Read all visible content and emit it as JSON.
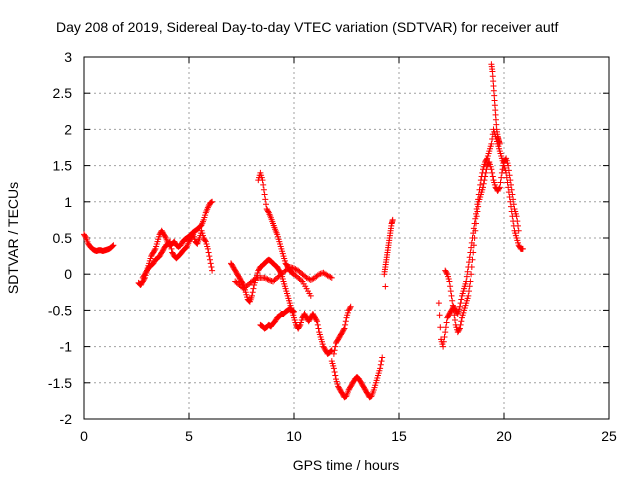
{
  "chart_data": {
    "type": "scatter",
    "title": "Day 208 of 2019, Sidereal Day-to-day VTEC variation (SDTVAR) for receiver autf",
    "xlabel": "GPS time / hours",
    "ylabel": "SDTVAR / TECUs",
    "xlim": [
      0,
      25
    ],
    "ylim": [
      -2,
      3
    ],
    "xticks": [
      0,
      5,
      10,
      15,
      20,
      25
    ],
    "xtick_labels": [
      "0",
      "5",
      "10",
      "15",
      "20",
      "25"
    ],
    "yticks": [
      -2,
      -1.5,
      -1,
      -0.5,
      0,
      0.5,
      1,
      1.5,
      2,
      2.5,
      3
    ],
    "ytick_labels": [
      "-2",
      "-1.5",
      "-1",
      "-0.5",
      "0",
      "0.5",
      "1",
      "1.5",
      "2",
      "2.5",
      "3"
    ],
    "grid": true,
    "marker": "+",
    "marker_color": "#ff0000",
    "series": [
      {
        "name": "seg1",
        "x": [
          0.0,
          0.1,
          0.2,
          0.3,
          0.4,
          0.5,
          0.6,
          0.7,
          0.8,
          0.9,
          1.0,
          1.1,
          1.2,
          1.3,
          1.4
        ],
        "y": [
          0.55,
          0.5,
          0.42,
          0.38,
          0.35,
          0.33,
          0.32,
          0.33,
          0.33,
          0.32,
          0.33,
          0.34,
          0.35,
          0.37,
          0.4
        ]
      },
      {
        "name": "seg2a",
        "x": [
          2.6,
          2.7,
          2.8,
          2.9,
          3.0,
          3.1,
          3.2,
          3.3,
          3.4,
          3.5,
          3.6,
          3.7,
          3.8,
          3.9,
          4.0,
          4.1,
          4.2,
          4.3,
          4.4,
          4.5,
          4.6,
          4.7,
          4.8,
          4.9,
          5.0,
          5.1,
          5.2,
          5.3,
          5.4,
          5.5,
          5.6,
          5.7,
          5.8,
          5.9,
          6.0,
          6.1
        ],
        "y": [
          -0.12,
          -0.15,
          -0.1,
          -0.05,
          0.05,
          0.15,
          0.25,
          0.3,
          0.35,
          0.45,
          0.55,
          0.6,
          0.55,
          0.5,
          0.42,
          0.4,
          0.42,
          0.45,
          0.4,
          0.38,
          0.4,
          0.45,
          0.48,
          0.5,
          0.52,
          0.55,
          0.58,
          0.6,
          0.62,
          0.65,
          0.68,
          0.75,
          0.85,
          0.92,
          0.98,
          1.0
        ]
      },
      {
        "name": "seg2b",
        "x": [
          2.8,
          2.9,
          3.0,
          3.1,
          3.2,
          3.3,
          3.4,
          3.5,
          3.6,
          3.7,
          3.8,
          3.9,
          4.0,
          4.1,
          4.2,
          4.3,
          4.4,
          4.5,
          4.6,
          4.7,
          4.8,
          4.9,
          5.0,
          5.1,
          5.2,
          5.3,
          5.4,
          5.5,
          5.6,
          5.7,
          5.8,
          5.9,
          6.0,
          6.1
        ],
        "y": [
          -0.05,
          0.0,
          0.05,
          0.1,
          0.12,
          0.15,
          0.2,
          0.22,
          0.25,
          0.3,
          0.35,
          0.4,
          0.42,
          0.45,
          0.3,
          0.25,
          0.22,
          0.25,
          0.28,
          0.32,
          0.35,
          0.38,
          0.45,
          0.5,
          0.55,
          0.45,
          0.42,
          0.5,
          0.6,
          0.5,
          0.45,
          0.35,
          0.2,
          0.05
        ]
      },
      {
        "name": "seg3a",
        "x": [
          7.0,
          7.1,
          7.2,
          7.3,
          7.4,
          7.5,
          7.6,
          7.7,
          7.8,
          7.9,
          8.0,
          8.1,
          8.2,
          8.3,
          8.4,
          8.5,
          8.6,
          8.7,
          8.8,
          8.9,
          9.0,
          9.1,
          9.2,
          9.3,
          9.4,
          9.5,
          9.6,
          9.7,
          9.8,
          9.9,
          10.0,
          10.1,
          10.2,
          10.3,
          10.4,
          10.5,
          10.6,
          10.7,
          10.8,
          10.9,
          11.0,
          11.1,
          11.2,
          11.3,
          11.4,
          11.5,
          11.6,
          11.7,
          11.8
        ],
        "y": [
          0.15,
          0.1,
          0.05,
          0.0,
          -0.05,
          -0.1,
          -0.15,
          -0.25,
          -0.35,
          -0.38,
          -0.3,
          -0.15,
          -0.05,
          0.05,
          0.1,
          0.12,
          0.15,
          0.18,
          0.2,
          0.18,
          0.15,
          0.12,
          0.1,
          0.05,
          0.0,
          -0.1,
          -0.2,
          -0.3,
          -0.4,
          -0.5,
          -0.6,
          -0.7,
          -0.75,
          -0.7,
          -0.6,
          -0.55,
          -0.6,
          -0.65,
          -0.6,
          -0.55,
          -0.6,
          -0.65,
          -0.8,
          -0.9,
          -1.0,
          -1.05,
          -1.1,
          -1.08,
          -1.05
        ]
      },
      {
        "name": "seg3b",
        "x": [
          7.2,
          7.4,
          7.6,
          7.8,
          8.0,
          8.2,
          8.4,
          8.6,
          8.8,
          9.0,
          9.2,
          9.4,
          9.6,
          9.8,
          10.0,
          10.2,
          10.4,
          10.6,
          10.8,
          11.0,
          11.2,
          11.4,
          11.6,
          11.8
        ],
        "y": [
          -0.1,
          -0.15,
          -0.2,
          -0.15,
          -0.1,
          -0.05,
          -0.05,
          -0.05,
          -0.08,
          -0.1,
          -0.05,
          0.0,
          0.05,
          0.1,
          0.08,
          0.05,
          0.0,
          -0.05,
          -0.08,
          -0.05,
          0.0,
          0.02,
          -0.02,
          -0.05
        ]
      },
      {
        "name": "seg3c",
        "x": [
          8.3,
          8.4,
          8.5,
          8.6,
          8.7,
          8.8,
          8.9,
          9.0,
          9.1,
          9.2,
          9.3,
          9.4,
          9.5,
          9.6,
          9.7,
          9.8,
          9.9,
          10.0,
          10.2,
          10.4,
          10.6,
          10.8
        ],
        "y": [
          1.3,
          1.4,
          1.3,
          1.1,
          0.9,
          0.85,
          0.78,
          0.7,
          0.62,
          0.55,
          0.45,
          0.35,
          0.25,
          0.15,
          0.1,
          0.05,
          0.02,
          0.0,
          -0.05,
          -0.1,
          -0.2,
          -0.3
        ]
      },
      {
        "name": "seg3d",
        "x": [
          8.4,
          8.5,
          8.6,
          8.7,
          8.8,
          8.9,
          9.0,
          9.1,
          9.2,
          9.3,
          9.4,
          9.5,
          9.6,
          9.7,
          9.8,
          9.9,
          10.0
        ],
        "y": [
          -0.7,
          -0.72,
          -0.75,
          -0.73,
          -0.7,
          -0.72,
          -0.68,
          -0.65,
          -0.6,
          -0.58,
          -0.55,
          -0.55,
          -0.52,
          -0.5,
          -0.48,
          -0.5,
          -0.52
        ]
      },
      {
        "name": "seg3e",
        "x": [
          11.8,
          11.9,
          12.0,
          12.1,
          12.2,
          12.3,
          12.4,
          12.5,
          12.6,
          12.7,
          12.8,
          12.9,
          13.0,
          13.1,
          13.2,
          13.3,
          13.4,
          13.5,
          13.6,
          13.7,
          13.8,
          13.9,
          14.0,
          14.1,
          14.2
        ],
        "y": [
          -1.2,
          -1.3,
          -1.45,
          -1.55,
          -1.6,
          -1.65,
          -1.7,
          -1.68,
          -1.6,
          -1.55,
          -1.5,
          -1.45,
          -1.42,
          -1.45,
          -1.5,
          -1.55,
          -1.6,
          -1.65,
          -1.7,
          -1.68,
          -1.6,
          -1.5,
          -1.4,
          -1.3,
          -1.15
        ]
      },
      {
        "name": "seg3f",
        "x": [
          11.9,
          12.0,
          12.1,
          12.2,
          12.3,
          12.4,
          12.5,
          12.6,
          12.7
        ],
        "y": [
          -1.1,
          -0.95,
          -0.9,
          -0.85,
          -0.8,
          -0.75,
          -0.6,
          -0.5,
          -0.45
        ]
      },
      {
        "name": "seg4",
        "x": [
          14.3,
          14.35,
          14.4,
          14.45,
          14.5,
          14.55,
          14.6,
          14.65,
          14.7
        ],
        "y": [
          0.0,
          0.1,
          0.2,
          0.3,
          0.4,
          0.5,
          0.6,
          0.7,
          0.75
        ]
      },
      {
        "name": "seg4b",
        "x": [
          14.35
        ],
        "y": [
          -0.17
        ]
      },
      {
        "name": "seg5a",
        "x": [
          16.9,
          17.0,
          17.1,
          17.2,
          17.3,
          17.4,
          17.5,
          17.6,
          17.7,
          17.8,
          17.9,
          18.0,
          18.1,
          18.2,
          18.3,
          18.4,
          18.5,
          18.6,
          18.7,
          18.8,
          18.9,
          19.0,
          19.1,
          19.2,
          19.3,
          19.4,
          19.5,
          19.6,
          19.7,
          19.8,
          19.9,
          20.0,
          20.1,
          20.2,
          20.3,
          20.4,
          20.5,
          20.6,
          20.7,
          20.8,
          20.9
        ],
        "y": [
          -0.4,
          -0.9,
          -1.0,
          -0.8,
          -0.6,
          -0.55,
          -0.5,
          -0.45,
          -0.5,
          -0.55,
          -0.45,
          -0.3,
          -0.2,
          -0.1,
          0.1,
          0.3,
          0.5,
          0.7,
          0.9,
          1.1,
          1.3,
          1.45,
          1.55,
          1.6,
          1.7,
          1.8,
          2.0,
          1.9,
          1.8,
          1.7,
          1.6,
          1.5,
          1.4,
          1.2,
          1.0,
          0.8,
          0.6,
          0.5,
          0.4,
          0.35,
          0.35
        ]
      },
      {
        "name": "seg5b",
        "x": [
          17.2,
          17.3,
          17.4,
          17.5,
          17.6,
          17.7,
          17.8,
          17.9,
          18.0,
          18.1,
          18.2,
          18.3,
          18.4,
          18.5,
          18.6,
          18.7,
          18.8,
          18.9,
          19.0,
          19.1,
          19.2,
          19.3,
          19.4,
          19.5,
          19.6,
          19.7,
          19.8,
          19.9,
          20.0,
          20.1,
          20.2,
          20.3,
          20.4,
          20.5,
          20.6,
          20.7
        ],
        "y": [
          0.05,
          0.0,
          -0.1,
          -0.3,
          -0.5,
          -0.7,
          -0.8,
          -0.75,
          -0.6,
          -0.5,
          -0.4,
          -0.3,
          -0.1,
          0.2,
          0.5,
          0.8,
          1.0,
          1.1,
          1.2,
          1.35,
          1.5,
          1.55,
          1.45,
          1.3,
          1.2,
          1.15,
          1.2,
          1.4,
          1.55,
          1.6,
          1.5,
          1.3,
          1.1,
          0.9,
          0.8,
          0.6
        ]
      },
      {
        "name": "seg5c",
        "x": [
          19.4,
          19.45,
          19.5,
          19.55,
          19.6,
          19.65,
          19.7,
          19.75,
          19.8
        ],
        "y": [
          2.9,
          2.8,
          2.6,
          2.4,
          2.2,
          2.0,
          1.9,
          1.85,
          1.8
        ]
      }
    ]
  }
}
